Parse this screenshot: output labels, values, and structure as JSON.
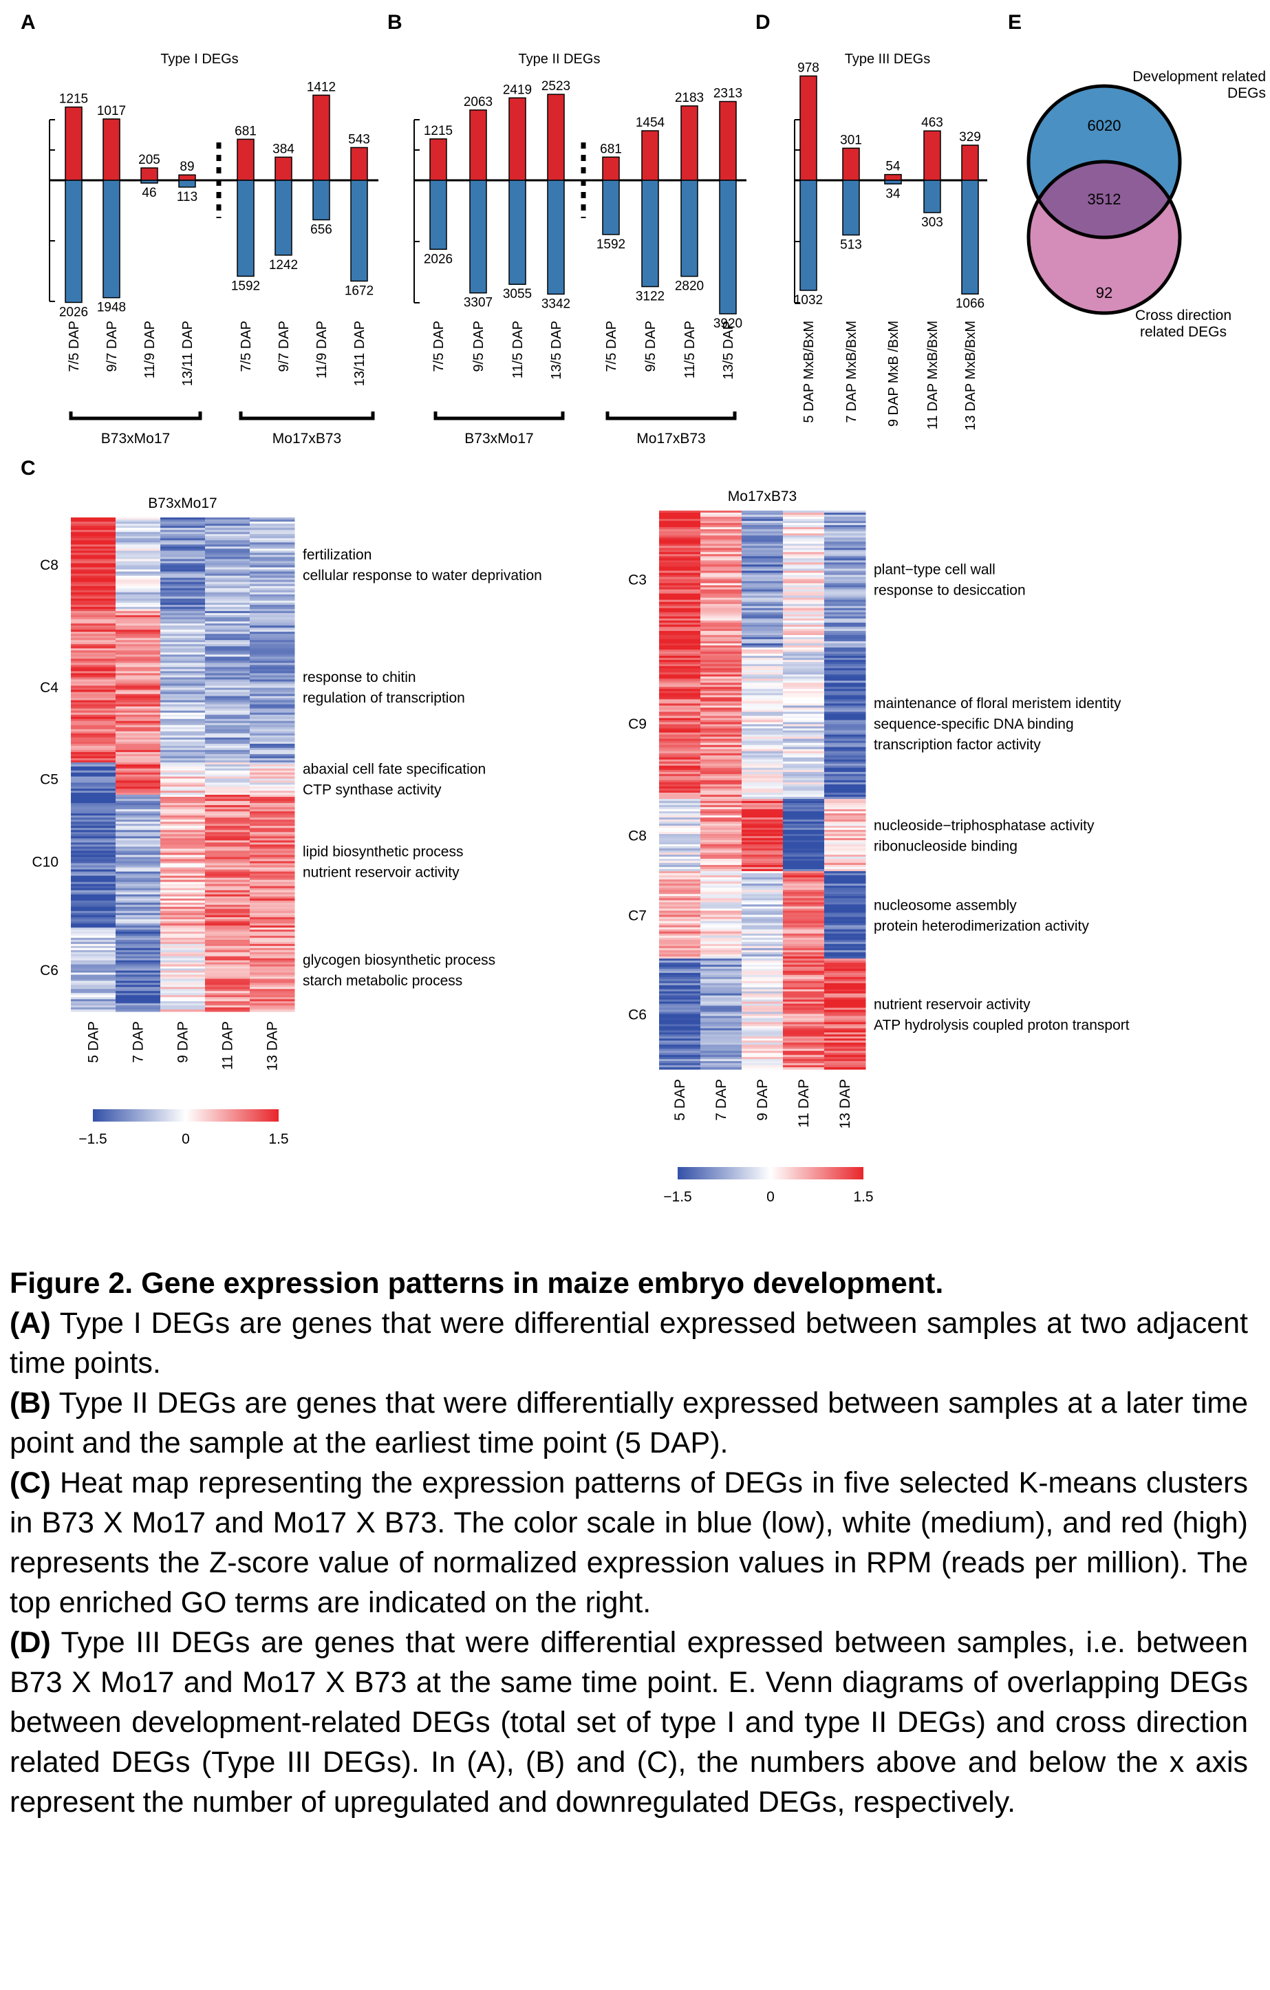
{
  "panels": {
    "A": {
      "letter": "A",
      "title": "Type I DEGs",
      "groups": [
        "B73xMo17",
        "Mo17xB73"
      ],
      "chart_data": {
        "type": "bar",
        "categories": [
          "7/5 DAP",
          "9/7 DAP",
          "11/9 DAP",
          "13/11 DAP",
          "7/5 DAP",
          "9/7 DAP",
          "11/9 DAP",
          "13/11 DAP"
        ],
        "series": [
          {
            "values": [
              1215,
              1017,
              205,
              89,
              681,
              384,
              1412,
              543
            ]
          },
          {
            "values": [
              2026,
              1948,
              46,
              113,
              1592,
              1242,
              656,
              1672
            ]
          }
        ]
      }
    },
    "B": {
      "letter": "B",
      "title": "Type II DEGs",
      "groups": [
        "B73xMo17",
        "Mo17xB73"
      ],
      "chart_data": {
        "type": "bar",
        "categories": [
          "7/5 DAP",
          "9/5 DAP",
          "11/5 DAP",
          "13/5 DAP",
          "7/5 DAP",
          "9/5 DAP",
          "11/5 DAP",
          "13/5 DAP"
        ],
        "series": [
          {
            "values": [
              1215,
              2063,
              2419,
              2523,
              681,
              1454,
              2183,
              2313
            ]
          },
          {
            "values": [
              2026,
              3307,
              3055,
              3342,
              1592,
              3122,
              2820,
              3920
            ]
          }
        ]
      }
    },
    "D": {
      "letter": "D",
      "title": "Type III DEGs",
      "chart_data": {
        "type": "bar",
        "categories": [
          "5 DAP MxB/BxM",
          "7 DAP MxB/BxM",
          "9 DAP MxB /BxM",
          "11 DAP MxB/BxM",
          "13 DAP MxB/BxM"
        ],
        "series": [
          {
            "values": [
              978,
              301,
              54,
              463,
              329
            ]
          },
          {
            "values": [
              1032,
              513,
              34,
              303,
              1066
            ]
          }
        ]
      }
    },
    "E": {
      "letter": "E",
      "venn": {
        "set_a_label_lines": [
          "Development related",
          "DEGs"
        ],
        "set_b_label_lines": [
          "Cross direction",
          "related DEGs"
        ],
        "only_a": "6020",
        "both": "3512",
        "only_b": "92",
        "color_a": "#4a90c2",
        "color_b": "#d48cb8",
        "color_overlap": "#8e5e98"
      }
    },
    "C": {
      "letter": "C",
      "heatmaps": [
        {
          "title": "B73xMo17",
          "columns": [
            "5 DAP",
            "7 DAP",
            "9 DAP",
            "11 DAP",
            "13 DAP"
          ],
          "clusters": [
            {
              "name": "C8",
              "levels": [
                1.5,
                -0.3,
                -0.9,
                -0.7,
                -0.6
              ],
              "go_terms": [
                "fertilization",
                "cellular response to water deprivation"
              ]
            },
            {
              "name": "C4",
              "levels": [
                1.0,
                0.9,
                -0.5,
                -0.7,
                -0.8
              ],
              "go_terms": [
                "response to chitin",
                "regulation of transcription"
              ]
            },
            {
              "name": "C5",
              "levels": [
                -1.2,
                1.2,
                0.2,
                -0.1,
                0.1
              ],
              "go_terms": [
                "abaxial cell fate specification",
                "CTP synthase activity"
              ]
            },
            {
              "name": "C10",
              "levels": [
                -1.3,
                -0.7,
                0.5,
                0.9,
                0.9
              ],
              "go_terms": [
                "lipid biosynthetic process",
                "nutrient reservoir activity"
              ]
            },
            {
              "name": "C6",
              "levels": [
                -0.5,
                -1.2,
                0.1,
                0.8,
                0.8
              ],
              "go_terms": [
                "glycogen biosynthetic process",
                "starch metabolic process"
              ]
            }
          ]
        },
        {
          "title": "Mo17xB73",
          "columns": [
            "5 DAP",
            "7 DAP",
            "9 DAP",
            "11 DAP",
            "13 DAP"
          ],
          "clusters": [
            {
              "name": "C3",
              "levels": [
                1.4,
                0.6,
                -0.9,
                0.1,
                -0.8
              ],
              "go_terms": [
                "plant−type cell wall",
                "response to desiccation"
              ]
            },
            {
              "name": "C9",
              "levels": [
                1.1,
                0.8,
                -0.1,
                -0.2,
                -1.3
              ],
              "go_terms": [
                "maintenance of floral meristem identity",
                "sequence-specific DNA binding",
                " transcription factor activity"
              ]
            },
            {
              "name": "C8",
              "levels": [
                -0.2,
                0.6,
                1.2,
                -1.5,
                0.3
              ],
              "go_terms": [
                "nucleoside−triphosphatase activity",
                "ribonucleoside binding"
              ]
            },
            {
              "name": "C7",
              "levels": [
                0.6,
                0.1,
                -0.3,
                0.9,
                -1.4
              ],
              "go_terms": [
                "nucleosome assembly",
                "protein heterodimerization activity"
              ]
            },
            {
              "name": "C6",
              "levels": [
                -1.2,
                -0.8,
                0.0,
                0.9,
                1.2
              ],
              "go_terms": [
                "nutrient reservoir activity",
                "ATP hydrolysis coupled proton transport"
              ]
            }
          ]
        }
      ],
      "scale_ticks": [
        "−1.5",
        "0",
        "1.5"
      ],
      "scale_colors": {
        "low": "#3451a8",
        "mid": "#ffffff",
        "high": "#e8262b"
      }
    }
  },
  "colors": {
    "up": "#d8262c",
    "down": "#3a79b0"
  },
  "caption": {
    "title": "Figure 2. Gene expression patterns in maize embryo development.",
    "items": [
      {
        "label": "(A)",
        "text": " Type I DEGs are genes that were differential expressed between samples at two adjacent time points."
      },
      {
        "label": "(B)",
        "text": " Type II DEGs are genes that were differentially expressed between samples at a later time point and the sample at the earliest time point (5 DAP)."
      },
      {
        "label": "(C)",
        "text": " Heat map representing the expression patterns of DEGs in five selected K-means clusters in B73 X Mo17 and Mo17 X B73. The color scale in blue (low), white (medium), and red (high) represents the Z-score value of normalized expression values in RPM (reads per million). The top enriched GO terms are indicated on the right."
      },
      {
        "label": "(D)",
        "text": " Type III DEGs are genes that were differential expressed between samples, i.e. between B73 X Mo17 and Mo17 X B73 at the same time point. E. Venn diagrams of overlapping DEGs between development-related DEGs (total set of type I and type II DEGs) and cross direction related DEGs (Type III DEGs). In (A), (B) and (C), the numbers above and below the x axis represent the number of upregulated and downregulated DEGs, respectively."
      }
    ]
  }
}
